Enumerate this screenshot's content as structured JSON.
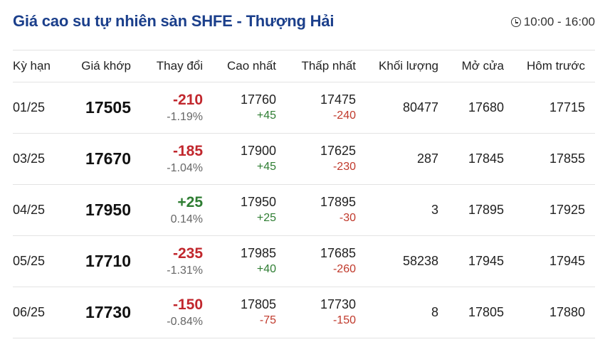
{
  "title": "Giá cao su tự nhiên sàn SHFE - Thượng Hải",
  "time": "10:00 - 16:00",
  "colors": {
    "title": "#1b3f8b",
    "up": "#2e7d32",
    "down": "#c1272d"
  },
  "headers": [
    "Kỳ hạn",
    "Giá khớp",
    "Thay đổi",
    "Cao nhất",
    "Thấp nhất",
    "Khối lượng",
    "Mở cửa",
    "Hôm trước"
  ],
  "rows": [
    {
      "term": "01/25",
      "price": "17505",
      "change": "-210",
      "pct": "-1.19%",
      "high": "17760",
      "high_diff": "+45",
      "low": "17475",
      "low_diff": "-240",
      "volume": "80477",
      "open": "17680",
      "prev": "17715"
    },
    {
      "term": "03/25",
      "price": "17670",
      "change": "-185",
      "pct": "-1.04%",
      "high": "17900",
      "high_diff": "+45",
      "low": "17625",
      "low_diff": "-230",
      "volume": "287",
      "open": "17845",
      "prev": "17855"
    },
    {
      "term": "04/25",
      "price": "17950",
      "change": "+25",
      "pct": "0.14%",
      "high": "17950",
      "high_diff": "+25",
      "low": "17895",
      "low_diff": "-30",
      "volume": "3",
      "open": "17895",
      "prev": "17925"
    },
    {
      "term": "05/25",
      "price": "17710",
      "change": "-235",
      "pct": "-1.31%",
      "high": "17985",
      "high_diff": "+40",
      "low": "17685",
      "low_diff": "-260",
      "volume": "58238",
      "open": "17945",
      "prev": "17945"
    },
    {
      "term": "06/25",
      "price": "17730",
      "change": "-150",
      "pct": "-0.84%",
      "high": "17805",
      "high_diff": "-75",
      "low": "17730",
      "low_diff": "-150",
      "volume": "8",
      "open": "17805",
      "prev": "17880"
    }
  ]
}
